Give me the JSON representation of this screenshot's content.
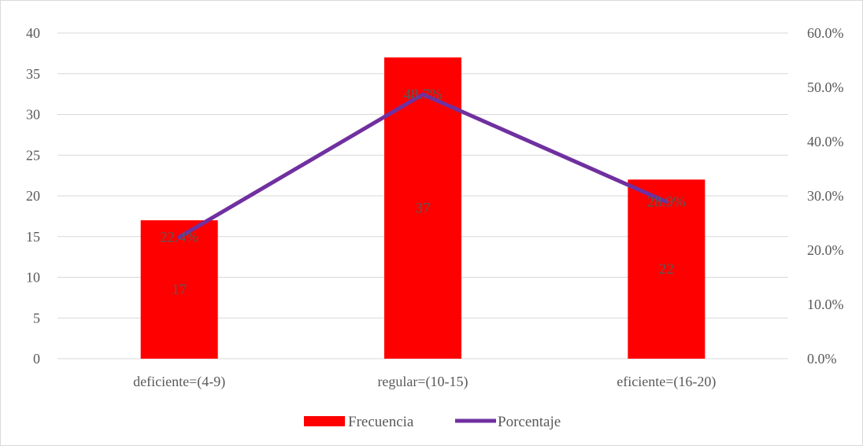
{
  "chart_data": {
    "type": "bar+line",
    "title": "",
    "categories": [
      "deficiente=(4-9)",
      "regular=(10-15)",
      "eficiente=(16-20)"
    ],
    "series": [
      {
        "name": "Frecuencia",
        "type": "bar",
        "axis": "left",
        "color": "#ff0000",
        "values": [
          17,
          37,
          22
        ],
        "labels": [
          "17",
          "37",
          "22"
        ]
      },
      {
        "name": "Porcentaje",
        "type": "line",
        "axis": "right",
        "color": "#7030a0",
        "values": [
          22.4,
          48.7,
          28.9
        ],
        "labels": [
          "22.4%",
          "48.7%",
          "28.9%"
        ]
      }
    ],
    "y_left": {
      "min": 0,
      "max": 40,
      "step": 5,
      "ticks": [
        "0",
        "5",
        "10",
        "15",
        "20",
        "25",
        "30",
        "35",
        "40"
      ]
    },
    "y_right": {
      "min": 0,
      "max": 60,
      "step": 10,
      "ticks": [
        "0.0%",
        "10.0%",
        "20.0%",
        "30.0%",
        "40.0%",
        "50.0%",
        "60.0%"
      ]
    },
    "grid": true,
    "legend_position": "bottom"
  }
}
